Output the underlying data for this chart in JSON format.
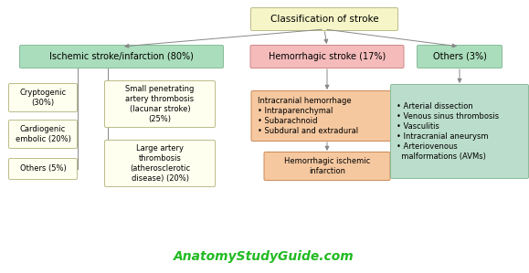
{
  "title": "Classification of stroke",
  "title_box_color": "#F5F5C8",
  "title_box_edge": "#BBBB88",
  "ischemic_label": "Ischemic stroke/infarction (80%)",
  "ischemic_color": "#AADDBB",
  "ischemic_edge": "#88BB99",
  "hemorrhagic_label": "Hemorrhagic stroke (17%)",
  "hemorrhagic_color": "#F5BBBB",
  "hemorrhagic_edge": "#CC8888",
  "others_label": "Others (3%)",
  "others_color": "#AADDBB",
  "others_edge": "#88BB99",
  "cryptogenic_label": "Cryptogenic\n(30%)",
  "cryptogenic_color": "#FFFFF0",
  "cryptogenic_edge": "#BBBB88",
  "cardiogenic_label": "Cardiogenic\nembolic (20%)",
  "cardiogenic_color": "#FFFFF0",
  "cardiogenic_edge": "#BBBB88",
  "others_small_label": "Others (5%)",
  "others_small_color": "#FFFFF0",
  "others_small_edge": "#BBBB88",
  "small_penetrating_label": "Small penetrating\nartery thrombosis\n(lacunar stroke)\n(25%)",
  "small_penetrating_color": "#FFFFF0",
  "small_penetrating_edge": "#BBBB88",
  "large_artery_label": "Large artery\nthrombosis\n(atherosclerotic\ndisease) (20%)",
  "large_artery_color": "#FFFFF0",
  "large_artery_edge": "#BBBB88",
  "intracranial_label": "Intracranial hemorrhage\n• Intraparenchymal\n• Subarachnoid\n• Subdural and extradural",
  "intracranial_color": "#F5C8A0",
  "intracranial_edge": "#CC8855",
  "hemorrhagic_ischemic_label": "Hemorrhagic ischemic\ninfarction",
  "hemorrhagic_ischemic_color": "#F5C8A0",
  "hemorrhagic_ischemic_edge": "#CC8855",
  "others_detail_label": "• Arterial dissection\n• Venous sinus thrombosis\n• Vasculitis\n• Intracranial aneurysm\n• Arteriovenous\n  malformations (AVMs)",
  "others_detail_color": "#BBDDCC",
  "others_detail_edge": "#88BB99",
  "watermark": "AnatomyStudyGuide.com",
  "watermark_color": "#22BB22",
  "background_color": "#FFFFFF",
  "line_color": "#888888",
  "arrow_color": "#888888"
}
